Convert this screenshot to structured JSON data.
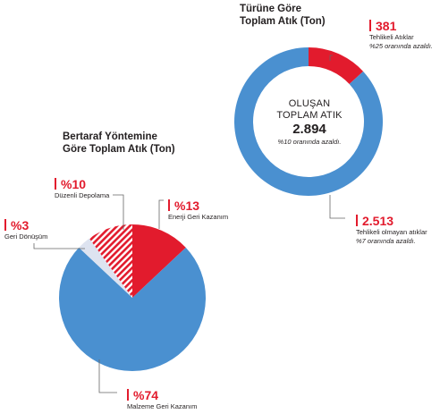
{
  "chart_data": [
    {
      "type": "pie",
      "title": "Bertaraf Yöntemine Göre Toplam Atık (Ton)",
      "slices": [
        {
          "label": "Enerji Geri Kazanım",
          "value": 13,
          "value_label": "%13",
          "color": "#e21b2d"
        },
        {
          "label": "Malzeme Geri Kazanım",
          "value": 74,
          "value_label": "%74",
          "color": "#4a90d0"
        },
        {
          "label": "Geri Dönüşüm",
          "value": 3,
          "value_label": "%3",
          "color": "#dde3f0"
        },
        {
          "label": "Düzenli Depolama",
          "value": 10,
          "value_label": "%10",
          "color": "#e21b2d",
          "pattern": "stripes"
        }
      ]
    },
    {
      "type": "pie",
      "subtype": "donut",
      "title": "Türüne Göre Toplam Atık (Ton)",
      "center": {
        "label": "OLUŞAN TOPLAM ATIK",
        "value": "2.894",
        "note": "%10 oranında azaldı."
      },
      "slices": [
        {
          "label": "Tehlikeli Atıklar",
          "value": 381,
          "value_label": "381",
          "note": "%25 oranında azaldı.",
          "color": "#e21b2d"
        },
        {
          "label": "Tehlikeli olmayan atıklar",
          "value": 2513,
          "value_label": "2.513",
          "note": "%7 oranında azaldı.",
          "color": "#4a90d0"
        }
      ]
    }
  ]
}
